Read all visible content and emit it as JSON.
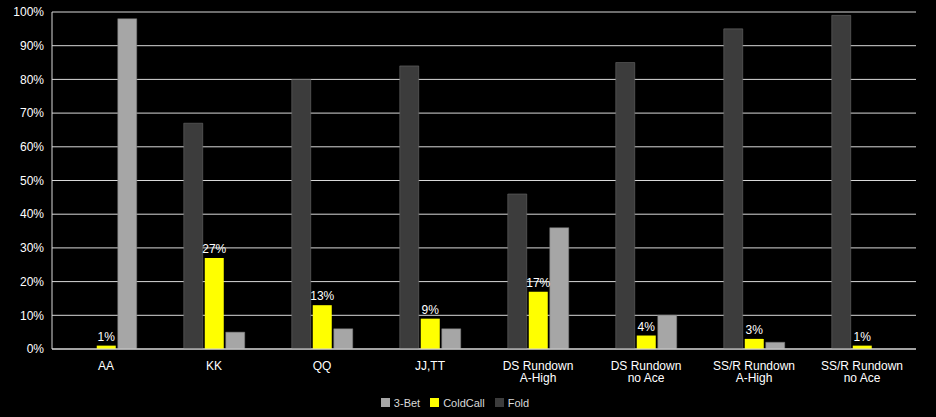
{
  "chart_data": {
    "type": "bar",
    "categories": [
      "AA",
      "KK",
      "QQ",
      "JJ,TT",
      "DS Rundown A-High",
      "DS Rundown no Ace",
      "SS/R Rundown A-High",
      "SS/R Rundown no Ace"
    ],
    "series": [
      {
        "name": "Fold",
        "color": "#3c3c3c",
        "values": [
          0,
          67,
          80,
          84,
          46,
          85,
          95,
          99
        ]
      },
      {
        "name": "ColdCall",
        "color": "#ffff00",
        "values": [
          1,
          27,
          13,
          9,
          17,
          4,
          3,
          1
        ],
        "value_labels": [
          "1%",
          "27%",
          "13%",
          "9%",
          "17%",
          "4%",
          "3%",
          "1%"
        ]
      },
      {
        "name": "3-Bet",
        "color": "#a6a6a6",
        "values": [
          98,
          5,
          6,
          6,
          36,
          10,
          2,
          0
        ]
      }
    ],
    "ylim": [
      0,
      100
    ],
    "yticks": [
      {
        "value": 0,
        "label": "0%"
      },
      {
        "value": 10,
        "label": "10%"
      },
      {
        "value": 20,
        "label": "20%"
      },
      {
        "value": 30,
        "label": "30%"
      },
      {
        "value": 40,
        "label": "40%"
      },
      {
        "value": 50,
        "label": "50%"
      },
      {
        "value": 60,
        "label": "60%"
      },
      {
        "value": 70,
        "label": "70%"
      },
      {
        "value": 80,
        "label": "80%"
      },
      {
        "value": 90,
        "label": "90%"
      },
      {
        "value": 100,
        "label": "100%"
      }
    ],
    "grid": true,
    "legend": "bottom"
  }
}
